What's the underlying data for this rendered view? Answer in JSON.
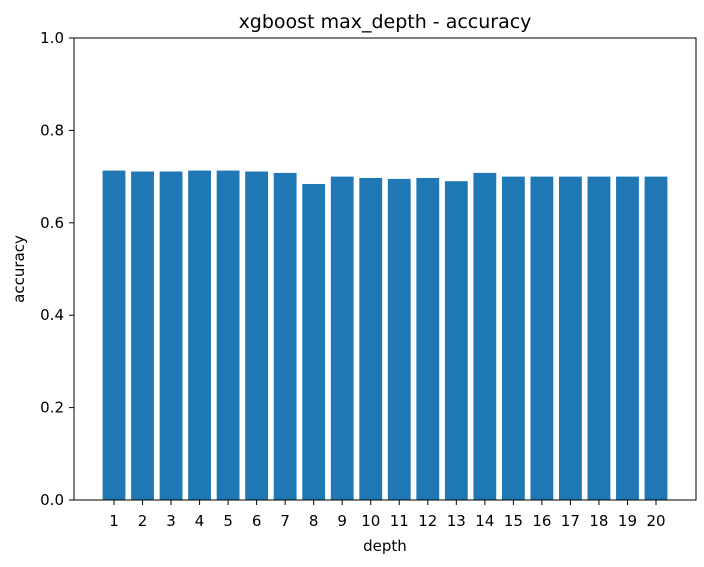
{
  "chart_data": {
    "type": "bar",
    "title": "xgboost max_depth - accuracy",
    "xlabel": "depth",
    "ylabel": "accuracy",
    "categories": [
      "1",
      "2",
      "3",
      "4",
      "5",
      "6",
      "7",
      "8",
      "9",
      "10",
      "11",
      "12",
      "13",
      "14",
      "15",
      "16",
      "17",
      "18",
      "19",
      "20"
    ],
    "values": [
      0.713,
      0.711,
      0.711,
      0.713,
      0.713,
      0.711,
      0.708,
      0.684,
      0.7,
      0.697,
      0.695,
      0.697,
      0.69,
      0.708,
      0.7,
      0.7,
      0.7,
      0.7,
      0.7,
      0.7
    ],
    "ylim": [
      0,
      1.0
    ],
    "yticks": [
      "0.0",
      "0.2",
      "0.4",
      "0.6",
      "0.8",
      "1.0"
    ],
    "bar_color": "#1f77b4",
    "grid": false
  }
}
